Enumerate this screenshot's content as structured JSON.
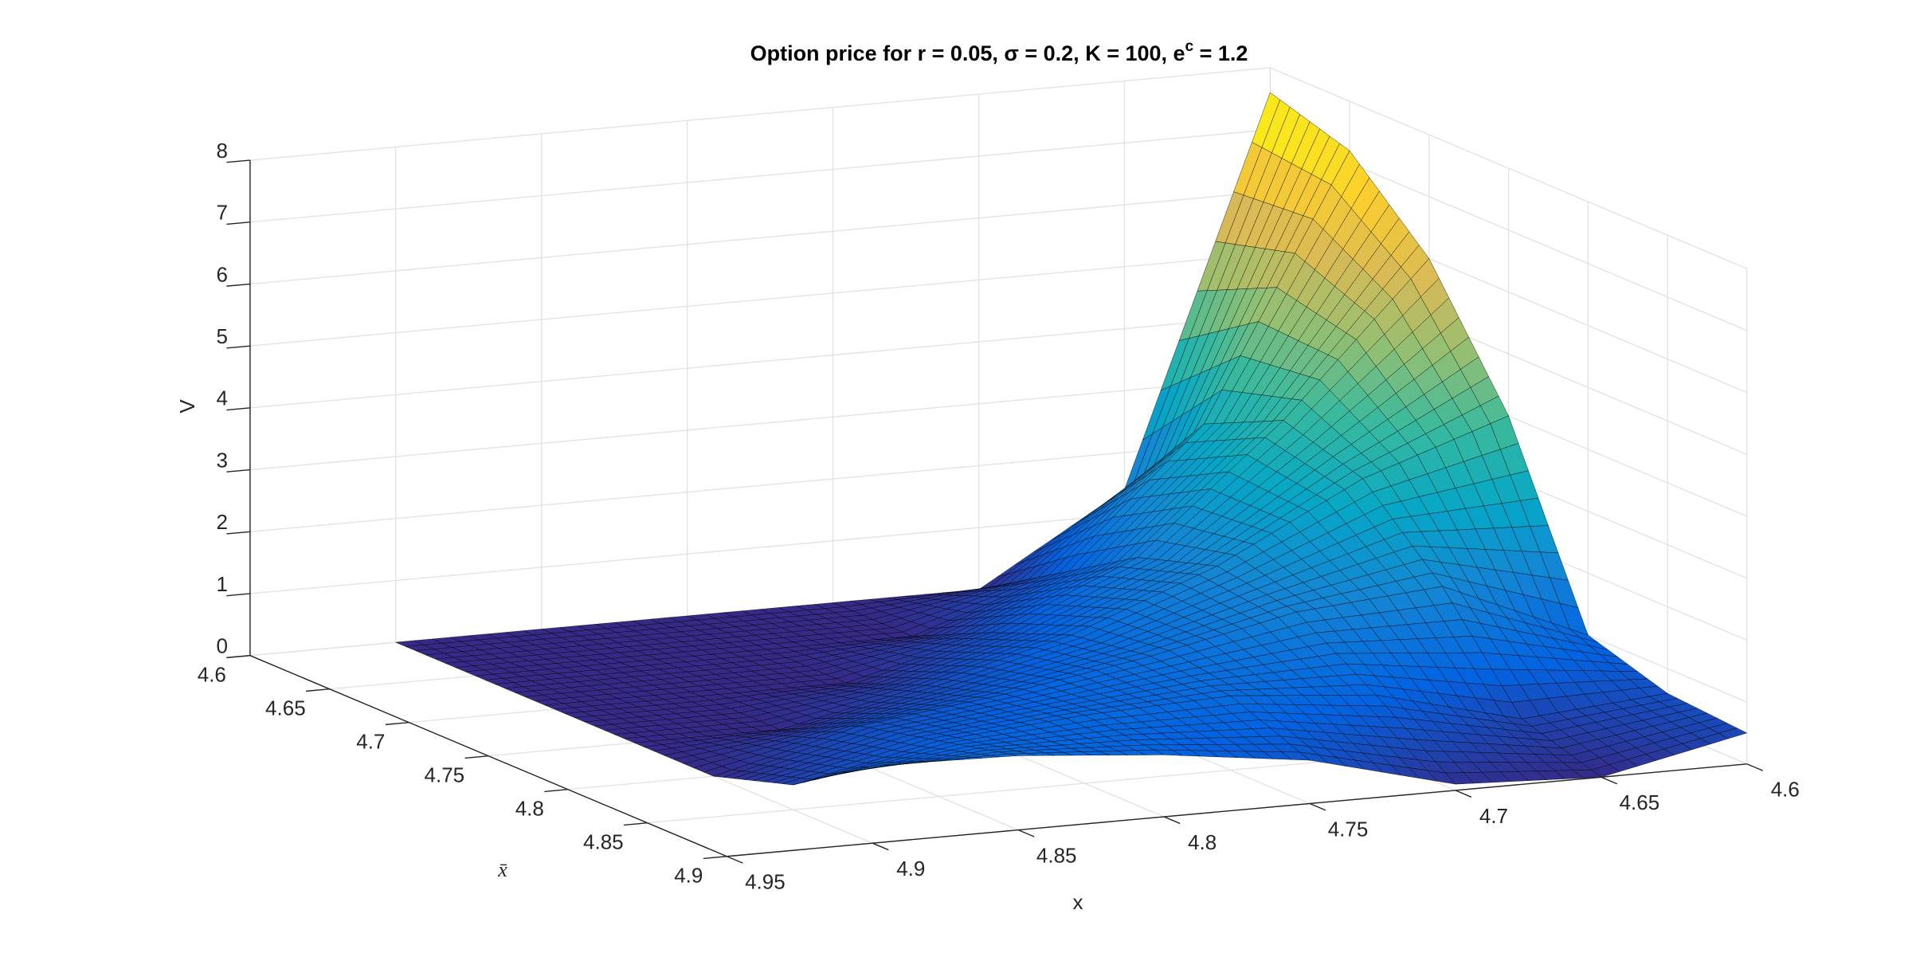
{
  "chart_data": {
    "type": "surface",
    "title": {
      "text": "Option price for r = 0.05, σ = 0.2, K = 100, e",
      "superscript": "c",
      "suffix": " = 1.2"
    },
    "xlabel": "x",
    "ylabel": "x̄",
    "zlabel": "V",
    "x": [
      4.6,
      4.65,
      4.7,
      4.75,
      4.8,
      4.85,
      4.9
    ],
    "y": [
      4.6,
      4.65,
      4.7,
      4.75,
      4.8,
      4.85,
      4.9
    ],
    "z": [
      [
        7.6,
        1.4,
        0,
        0,
        0,
        0,
        0
      ],
      [
        7.2,
        3.0,
        0.8,
        0,
        0,
        0,
        0
      ],
      [
        6.0,
        3.6,
        1.6,
        0.6,
        0,
        0,
        0
      ],
      [
        4.0,
        3.2,
        2.0,
        1.1,
        0.5,
        0,
        0
      ],
      [
        1.0,
        2.0,
        1.8,
        1.3,
        0.9,
        0.6,
        0
      ],
      [
        0.6,
        0.4,
        1.0,
        1.2,
        1.1,
        0.9,
        0.4
      ],
      [
        0.5,
        0,
        0.1,
        0.7,
        1.0,
        1.2,
        1.25
      ]
    ],
    "colormap": "parula",
    "edgecolor": "#000000",
    "xlim": [
      4.6,
      4.95
    ],
    "ylim": [
      4.6,
      4.9
    ],
    "zlim": [
      0,
      8
    ],
    "xticks": [
      4.6,
      4.65,
      4.7,
      4.75,
      4.8,
      4.85,
      4.9,
      4.95
    ],
    "yticks": [
      4.6,
      4.65,
      4.7,
      4.75,
      4.8,
      4.85,
      4.9
    ],
    "zticks": [
      0,
      1,
      2,
      3,
      4,
      5,
      6,
      7,
      8
    ],
    "grid": true
  }
}
